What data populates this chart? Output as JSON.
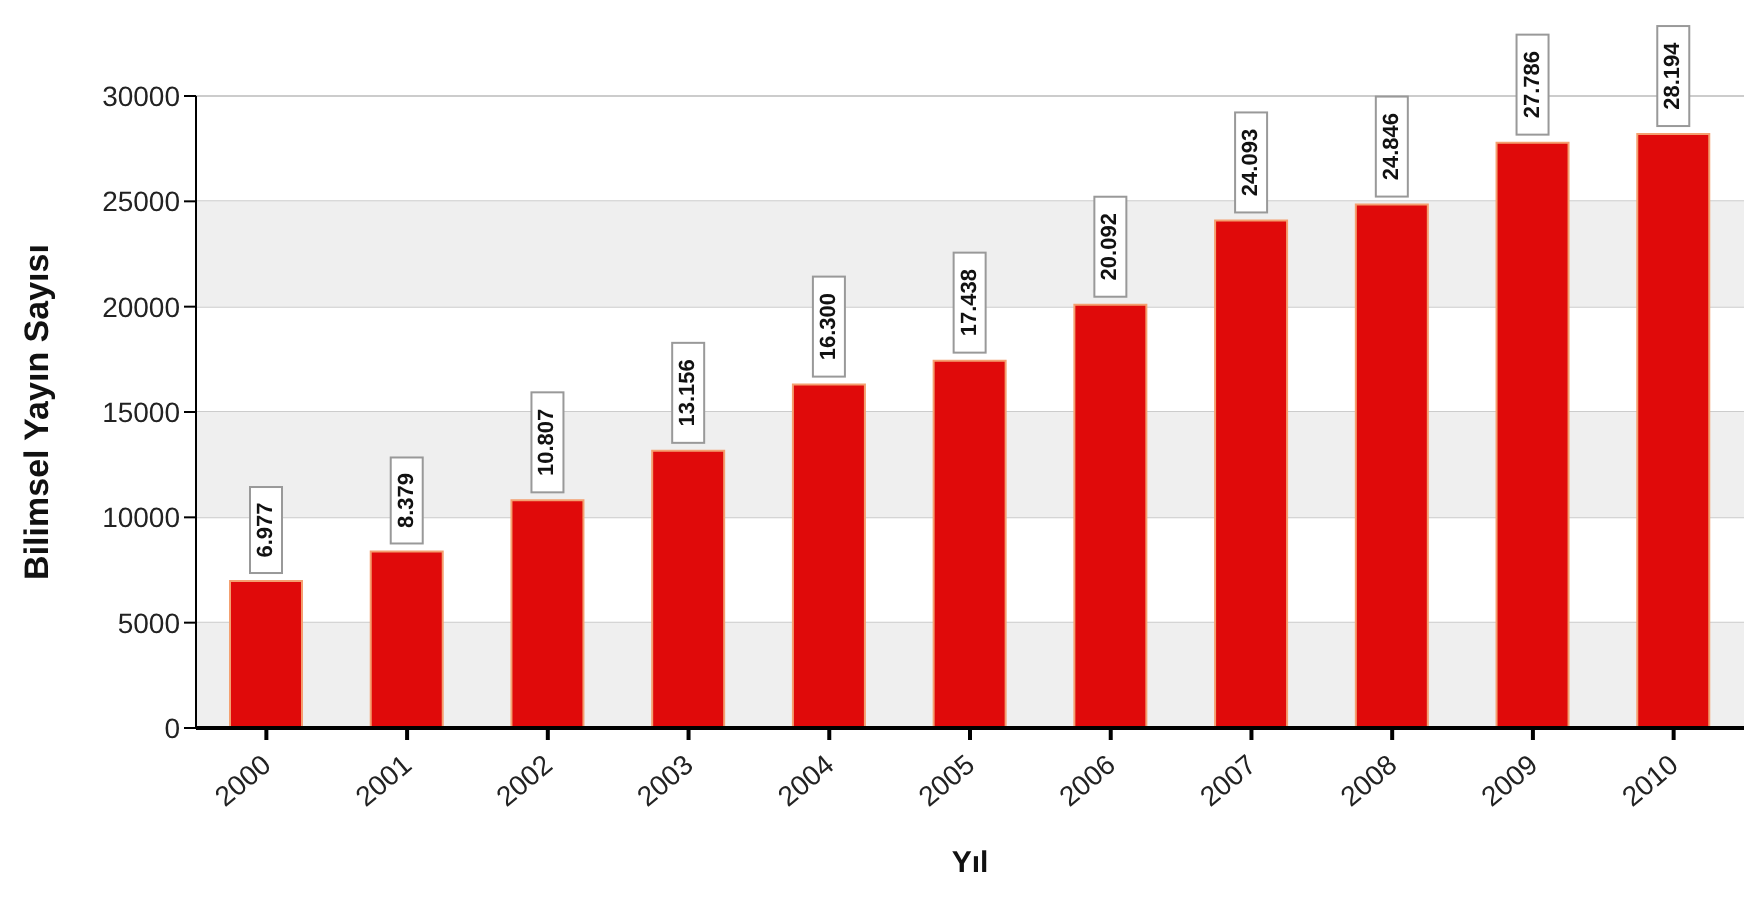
{
  "chart_data": {
    "type": "bar",
    "xlabel": "Yıl",
    "ylabel": "Bilimsel Yayın Sayısı",
    "categories": [
      "2000",
      "2001",
      "2002",
      "2003",
      "2004",
      "2005",
      "2006",
      "2007",
      "2008",
      "2009",
      "2010"
    ],
    "values": [
      6977,
      8379,
      10807,
      13156,
      16300,
      17438,
      20092,
      24093,
      24846,
      27786,
      28194
    ],
    "value_labels": [
      "6.977",
      "8.379",
      "10.807",
      "13.156",
      "16.300",
      "17.438",
      "20.092",
      "24.093",
      "24.846",
      "27.786",
      "28.194"
    ],
    "color": "#e00a0a",
    "ylim": [
      0,
      30000
    ],
    "yticks": [
      0,
      5000,
      10000,
      15000,
      20000,
      25000,
      30000
    ],
    "grid": "y",
    "bands": [
      {
        "axis": "y",
        "from": 0,
        "to": 5000,
        "color": "#efefef"
      },
      {
        "axis": "y",
        "from": 10000,
        "to": 15000,
        "color": "#efefef"
      },
      {
        "axis": "y",
        "from": 20000,
        "to": 25000,
        "color": "#efefef"
      }
    ]
  }
}
